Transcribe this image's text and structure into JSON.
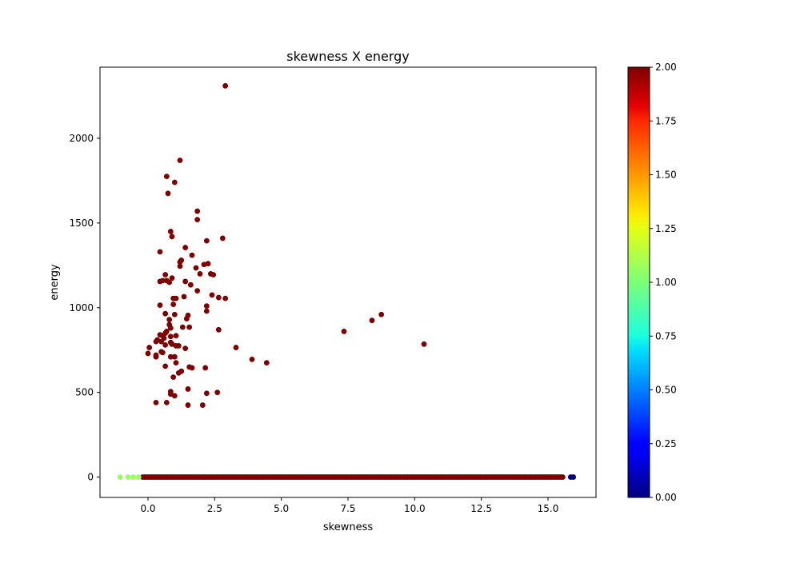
{
  "chart_data": {
    "type": "scatter",
    "title": "skewness X energy",
    "xlabel": "skewness",
    "ylabel": "energy",
    "xlim": [
      -1.8,
      16.8
    ],
    "ylim": [
      -120,
      2420
    ],
    "xticks": [
      0.0,
      2.5,
      5.0,
      7.5,
      10.0,
      12.5,
      15.0
    ],
    "xtick_labels": [
      "0.0",
      "2.5",
      "5.0",
      "7.5",
      "10.0",
      "12.5",
      "15.0"
    ],
    "yticks": [
      0,
      500,
      1000,
      1500,
      2000
    ],
    "ytick_labels": [
      "0",
      "500",
      "1000",
      "1500",
      "2000"
    ],
    "grid": false,
    "colorbar": {
      "min": 0,
      "max": 2,
      "colormap": "jet",
      "ticks": [
        0.0,
        0.25,
        0.5,
        0.75,
        1.0,
        1.25,
        1.5,
        1.75,
        2.0
      ],
      "tick_labels": [
        "0.00",
        "0.25",
        "0.50",
        "0.75",
        "1.00",
        "1.25",
        "1.50",
        "1.75",
        "2.00"
      ]
    },
    "points": [
      [
        2.9,
        2310,
        2
      ],
      [
        1.2,
        1870,
        2
      ],
      [
        0.7,
        1775,
        2
      ],
      [
        1.0,
        1740,
        2
      ],
      [
        0.75,
        1675,
        2
      ],
      [
        1.85,
        1570,
        2
      ],
      [
        1.85,
        1520,
        2
      ],
      [
        0.85,
        1450,
        2
      ],
      [
        0.9,
        1420,
        2
      ],
      [
        2.8,
        1410,
        2
      ],
      [
        2.2,
        1395,
        2
      ],
      [
        1.4,
        1355,
        2
      ],
      [
        0.45,
        1330,
        2
      ],
      [
        1.65,
        1310,
        2
      ],
      [
        1.25,
        1280,
        2
      ],
      [
        1.2,
        1270,
        2
      ],
      [
        2.25,
        1260,
        2
      ],
      [
        2.1,
        1255,
        2
      ],
      [
        1.2,
        1245,
        2
      ],
      [
        1.8,
        1235,
        2
      ],
      [
        2.35,
        1200,
        2
      ],
      [
        1.95,
        1200,
        2
      ],
      [
        0.65,
        1195,
        2
      ],
      [
        2.45,
        1195,
        2
      ],
      [
        0.9,
        1175,
        2
      ],
      [
        0.55,
        1160,
        2
      ],
      [
        0.7,
        1160,
        2
      ],
      [
        1.4,
        1155,
        2
      ],
      [
        0.45,
        1155,
        2
      ],
      [
        0.8,
        1150,
        2
      ],
      [
        1.6,
        1135,
        2
      ],
      [
        1.85,
        1100,
        2
      ],
      [
        2.4,
        1075,
        2
      ],
      [
        1.35,
        1065,
        2
      ],
      [
        2.65,
        1060,
        2
      ],
      [
        2.9,
        1055,
        2
      ],
      [
        0.95,
        1055,
        2
      ],
      [
        1.05,
        1055,
        2
      ],
      [
        0.95,
        1020,
        2
      ],
      [
        0.45,
        1015,
        2
      ],
      [
        2.2,
        1010,
        2
      ],
      [
        2.2,
        980,
        2
      ],
      [
        0.65,
        965,
        2
      ],
      [
        1.0,
        960,
        2
      ],
      [
        1.5,
        955,
        2
      ],
      [
        1.45,
        935,
        2
      ],
      [
        0.8,
        930,
        2
      ],
      [
        0.8,
        900,
        2
      ],
      [
        1.55,
        885,
        2
      ],
      [
        1.3,
        885,
        2
      ],
      [
        0.85,
        880,
        2
      ],
      [
        2.65,
        870,
        2
      ],
      [
        0.7,
        860,
        2
      ],
      [
        0.65,
        850,
        2
      ],
      [
        0.45,
        840,
        2
      ],
      [
        0.55,
        835,
        2
      ],
      [
        1.05,
        835,
        2
      ],
      [
        0.85,
        830,
        2
      ],
      [
        0.6,
        820,
        2
      ],
      [
        0.35,
        810,
        2
      ],
      [
        0.3,
        800,
        2
      ],
      [
        0.5,
        800,
        2
      ],
      [
        0.85,
        795,
        2
      ],
      [
        0.9,
        785,
        2
      ],
      [
        0.65,
        780,
        2
      ],
      [
        1.05,
        775,
        2
      ],
      [
        1.15,
        775,
        2
      ],
      [
        3.3,
        765,
        2
      ],
      [
        0.05,
        765,
        2
      ],
      [
        1.4,
        760,
        2
      ],
      [
        0.5,
        740,
        2
      ],
      [
        0.55,
        735,
        2
      ],
      [
        0.0,
        730,
        2
      ],
      [
        0.3,
        720,
        2
      ],
      [
        0.3,
        710,
        2
      ],
      [
        0.85,
        710,
        2
      ],
      [
        1.0,
        710,
        2
      ],
      [
        3.9,
        695,
        2
      ],
      [
        4.45,
        675,
        2
      ],
      [
        1.05,
        675,
        2
      ],
      [
        0.65,
        655,
        2
      ],
      [
        1.55,
        650,
        2
      ],
      [
        1.65,
        645,
        2
      ],
      [
        2.15,
        645,
        2
      ],
      [
        1.25,
        625,
        2
      ],
      [
        1.15,
        615,
        2
      ],
      [
        0.95,
        590,
        2
      ],
      [
        1.5,
        520,
        2
      ],
      [
        0.85,
        505,
        2
      ],
      [
        2.6,
        500,
        2
      ],
      [
        2.2,
        495,
        2
      ],
      [
        0.85,
        490,
        2
      ],
      [
        1.0,
        480,
        2
      ],
      [
        0.3,
        440,
        2
      ],
      [
        0.7,
        440,
        2
      ],
      [
        1.5,
        425,
        2
      ],
      [
        2.05,
        425,
        2
      ],
      [
        7.35,
        860,
        2
      ],
      [
        8.4,
        925,
        2
      ],
      [
        8.75,
        960,
        2
      ],
      [
        10.35,
        785,
        2
      ],
      [
        -1.05,
        0,
        1.05
      ],
      [
        -0.75,
        0,
        1.05
      ],
      [
        -0.55,
        0,
        1.05
      ],
      [
        -0.35,
        0,
        1.05
      ],
      [
        15.85,
        0,
        0
      ],
      [
        15.95,
        0,
        0
      ]
    ],
    "baseline_band": {
      "y": 0,
      "x_start": -0.2,
      "x_end": 15.6,
      "value": 2
    }
  },
  "colors": {
    "axes": "#000000",
    "background": "#ffffff"
  }
}
